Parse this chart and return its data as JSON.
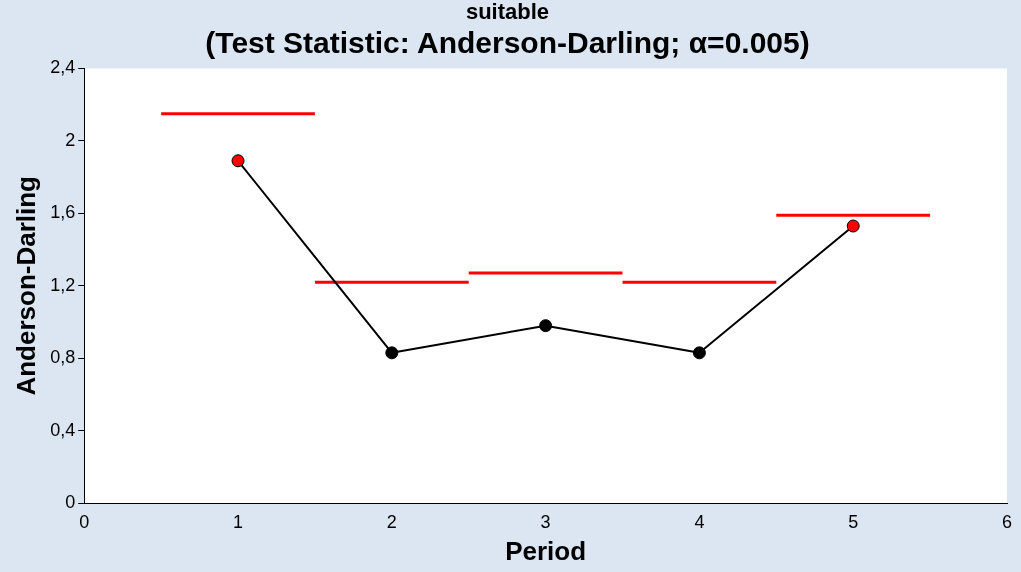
{
  "chart_data": {
    "type": "line",
    "title": "suitable",
    "subtitle": "(Test Statistic: Anderson-Darling; α=0.005)",
    "xlabel": "Period",
    "ylabel": "Anderson-Darling",
    "xlim": [
      0,
      6
    ],
    "xticks": [
      0,
      1,
      2,
      3,
      4,
      5,
      6
    ],
    "ylim": [
      0,
      2.4
    ],
    "yticks": [
      0,
      {
        "value": 0.4,
        "label": "0,4"
      },
      {
        "value": 0.8,
        "label": "0,8"
      },
      {
        "value": 1.2,
        "label": "1,2"
      },
      {
        "value": 1.6,
        "label": "1,6"
      },
      {
        "value": 2,
        "label": "2"
      },
      {
        "value": 2.4,
        "label": "2,4"
      }
    ],
    "x": [
      1,
      2,
      3,
      4,
      5
    ],
    "grid": false,
    "legend": false,
    "series": [
      {
        "color": "#000000",
        "colors": [
          "#ff0000",
          "#000000",
          "#000000",
          "#000000",
          "#ff0000"
        ],
        "values": [
          1.89,
          0.83,
          0.98,
          0.83,
          1.53
        ],
        "marker": "circle"
      },
      {
        "color": "#ff0000",
        "x": [
          0.5,
          1.5
        ],
        "values": [
          2.15,
          2.15
        ],
        "marker": "none"
      },
      {
        "color": "#ff0000",
        "x": [
          1.5,
          2.5
        ],
        "values": [
          1.22,
          1.22
        ],
        "marker": "none"
      },
      {
        "color": "#ff0000",
        "x": [
          2.5,
          3.5
        ],
        "values": [
          1.27,
          1.27
        ],
        "marker": "none"
      },
      {
        "color": "#ff0000",
        "x": [
          3.5,
          4.5
        ],
        "values": [
          1.22,
          1.22
        ],
        "marker": "none"
      },
      {
        "color": "#ff0000",
        "x": [
          4.5,
          5.5
        ],
        "values": [
          1.59,
          1.59
        ],
        "marker": "none"
      }
    ]
  }
}
